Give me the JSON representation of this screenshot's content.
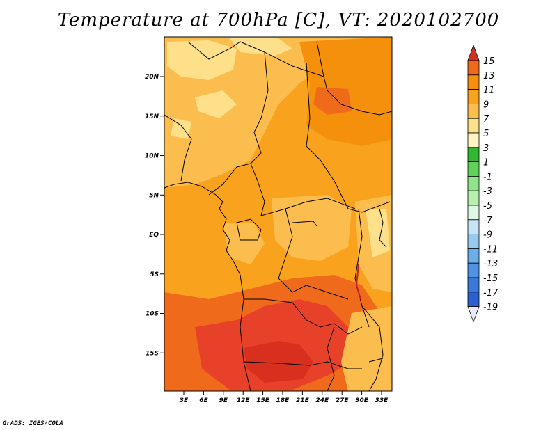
{
  "title": "Temperature at 700hPa [C], VT: 2020102700",
  "credit": "GrADS: IGES/COLA",
  "map": {
    "lat_labels": [
      "20N",
      "15N",
      "10N",
      "5N",
      "EQ",
      "5S",
      "10S",
      "15S"
    ],
    "lon_labels": [
      "3E",
      "6E",
      "9E",
      "12E",
      "15E",
      "18E",
      "21E",
      "24E",
      "27E",
      "30E",
      "33E"
    ]
  },
  "colorbar": {
    "labels": [
      "15",
      "13",
      "11",
      "9",
      "7",
      "5",
      "3",
      "1",
      "-1",
      "-3",
      "-5",
      "-7",
      "-9",
      "-11",
      "-13",
      "-15",
      "-17",
      "-19"
    ],
    "colors": [
      "#e8412a",
      "#f06a1c",
      "#f5900d",
      "#f9a21e",
      "#fbbe4e",
      "#fde089",
      "#fff4c2",
      "#2fb830",
      "#5ed35a",
      "#8fe68a",
      "#b8f0b0",
      "#dff7e6",
      "#c6e4f6",
      "#98caf0",
      "#6aaeea",
      "#4f93e4",
      "#3a78dc",
      "#2c5fd0",
      "#1f45c2",
      "#0e2aa8",
      "#e8eaf8"
    ],
    "top_arrow_color": "#d7301f",
    "bottom_arrow_color": "#e8eaf8"
  }
}
